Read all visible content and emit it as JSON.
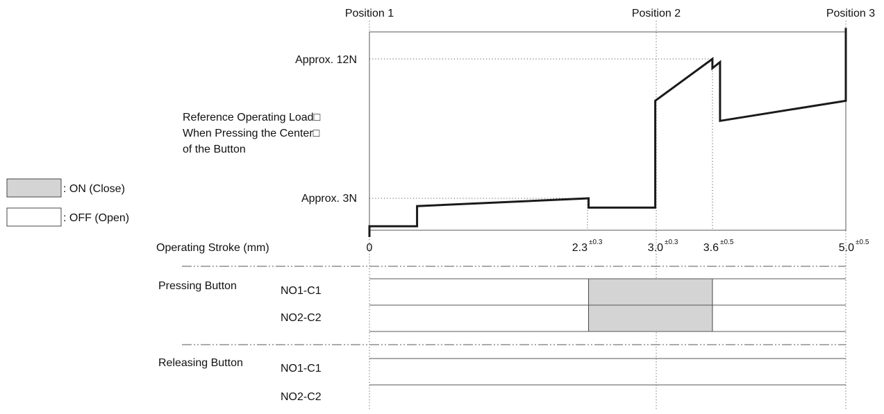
{
  "positions": [
    "Position 1",
    "Position 2",
    "Position 3"
  ],
  "force_labels": {
    "high": "Approx. 12N",
    "low": "Approx. 3N",
    "reference": [
      "Reference Operating Load□",
      "When Pressing the Center□",
      "of the Button"
    ]
  },
  "legend": {
    "on": {
      "label": ": ON (Close)",
      "color": "#d4d4d4"
    },
    "off": {
      "label": ": OFF (Open)",
      "color": "#ffffff"
    }
  },
  "stroke_axis": {
    "title": "Operating Stroke (mm)",
    "ticks": [
      {
        "value": "0",
        "tol": ""
      },
      {
        "value": "2.3",
        "tol": "±0.3"
      },
      {
        "value": "3.0",
        "tol": "±0.3"
      },
      {
        "value": "3.6",
        "tol": "±0.5"
      },
      {
        "value": "5.0",
        "tol": "±0.5"
      }
    ]
  },
  "sections": {
    "pressing": {
      "title": "Pressing Button",
      "contacts": [
        "NO1-C1",
        "NO2-C2"
      ]
    },
    "releasing": {
      "title": "Releasing Button",
      "contacts": [
        "NO1-C1",
        "NO2-C2"
      ]
    }
  },
  "chart_data": {
    "type": "line",
    "xlabel": "Operating Stroke (mm)",
    "ylabel": "",
    "xlim": [
      0,
      5.0
    ],
    "x_ticks": [
      0,
      2.3,
      3.0,
      3.6,
      5.0
    ],
    "y_reference": {
      "Approx. 3N": 3,
      "Approx. 12N": 12
    },
    "series": [
      {
        "x": [
          0,
          0,
          0.5,
          0.5,
          2.3,
          2.3,
          3.0,
          3.0,
          3.6,
          3.6,
          3.68,
          3.68,
          5.0,
          5.0
        ],
        "y": [
          0.5,
          1.2,
          1.2,
          2.5,
          3.0,
          2.4,
          2.4,
          9.3,
          12.0,
          11.4,
          11.8,
          8.0,
          9.3,
          14.0
        ]
      }
    ],
    "switching": {
      "pressing": {
        "NO1-C1": {
          "on_from": 2.3,
          "on_to": 3.6
        },
        "NO2-C2": {
          "on_from": 2.3,
          "on_to": 3.6
        }
      },
      "releasing": {
        "NO1-C1": {
          "on_from": null,
          "on_to": null
        },
        "NO2-C2": {
          "on_from": null,
          "on_to": null
        }
      }
    },
    "legend_position": "left"
  }
}
